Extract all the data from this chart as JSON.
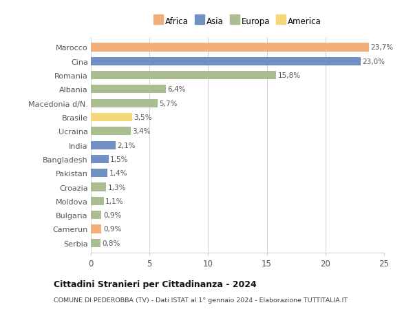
{
  "countries": [
    "Marocco",
    "Cina",
    "Romania",
    "Albania",
    "Macedonia d/N.",
    "Brasile",
    "Ucraina",
    "India",
    "Bangladesh",
    "Pakistan",
    "Croazia",
    "Moldova",
    "Bulgaria",
    "Camerun",
    "Serbia"
  ],
  "values": [
    23.7,
    23.0,
    15.8,
    6.4,
    5.7,
    3.5,
    3.4,
    2.1,
    1.5,
    1.4,
    1.3,
    1.1,
    0.9,
    0.9,
    0.8
  ],
  "labels": [
    "23,7%",
    "23,0%",
    "15,8%",
    "6,4%",
    "5,7%",
    "3,5%",
    "3,4%",
    "2,1%",
    "1,5%",
    "1,4%",
    "1,3%",
    "1,1%",
    "0,9%",
    "0,9%",
    "0,8%"
  ],
  "continents": [
    "Africa",
    "Asia",
    "Europa",
    "Europa",
    "Europa",
    "America",
    "Europa",
    "Asia",
    "Asia",
    "Asia",
    "Europa",
    "Europa",
    "Europa",
    "Africa",
    "Europa"
  ],
  "continent_colors": {
    "Africa": "#F2AF7A",
    "Asia": "#7090C4",
    "Europa": "#ABBE92",
    "America": "#F5D878"
  },
  "legend_order": [
    "Africa",
    "Asia",
    "Europa",
    "America"
  ],
  "title": "Cittadini Stranieri per Cittadinanza - 2024",
  "subtitle": "COMUNE DI PEDEROBBA (TV) - Dati ISTAT al 1° gennaio 2024 - Elaborazione TUTTITALIA.IT",
  "xlim": [
    0,
    25
  ],
  "xticks": [
    0,
    5,
    10,
    15,
    20,
    25
  ],
  "bg_color": "#ffffff",
  "grid_color": "#d0d0d0",
  "bar_height": 0.6
}
